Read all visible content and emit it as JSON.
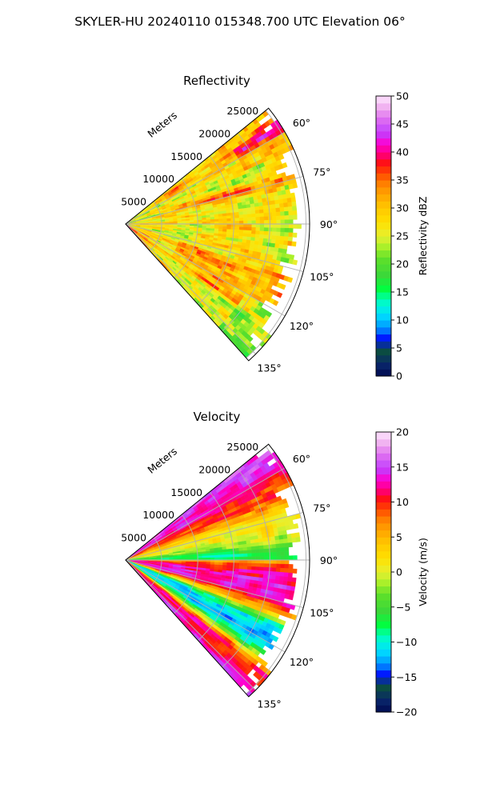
{
  "title": "SKYLER-HU  20240110  015348.700 UTC Elevation 06°",
  "chart_data": [
    {
      "type": "heatmap",
      "subtype": "polar-sector-ppi",
      "title": "Reflectivity",
      "radial_label": "Meters",
      "radial_ticks": [
        5000,
        10000,
        15000,
        20000,
        25000
      ],
      "radial_max": 25500,
      "angle_range_deg": [
        51,
        138
      ],
      "angle_ticks": [
        "60°",
        "75°",
        "90°",
        "105°",
        "120°",
        "135°"
      ],
      "grid": true,
      "colorbar": {
        "label": "Reflectivity dBZ",
        "ticks": [
          0,
          5,
          10,
          15,
          20,
          25,
          30,
          35,
          40,
          45,
          50
        ],
        "range": [
          0,
          50
        ]
      },
      "field_summary": "mostly 25-35 dBZ (yellow/orange) with bands of 35-42 dBZ (red/magenta) near 60°-80° and southeast of 105°"
    },
    {
      "type": "heatmap",
      "subtype": "polar-sector-ppi",
      "title": "Velocity",
      "radial_label": "Meters",
      "radial_ticks": [
        5000,
        10000,
        15000,
        20000,
        25000
      ],
      "radial_max": 25500,
      "angle_range_deg": [
        51,
        138
      ],
      "angle_ticks": [
        "60°",
        "75°",
        "90°",
        "105°",
        "120°",
        "135°"
      ],
      "grid": true,
      "colorbar": {
        "label": "Velocity (m/s)",
        "ticks": [
          -20,
          -15,
          -10,
          -5,
          0,
          5,
          10,
          15,
          20
        ],
        "range": [
          -20,
          20
        ]
      },
      "field_summary": "+10 to +17 m/s at 55°-70°, near 0 m/s at 75°-85°, -5 to -12 m/s at ~88°, +10 to +15 m/s at 95°-110°, -10 to -15 m/s at 115°-125°, +8 to +15 m/s near 130°-135°"
    }
  ]
}
